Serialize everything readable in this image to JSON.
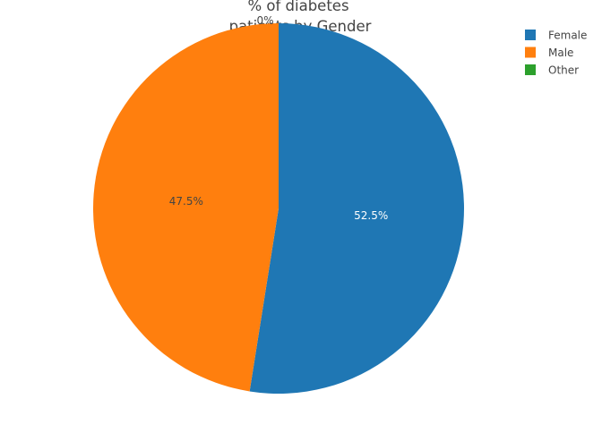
{
  "chart_data": {
    "type": "pie",
    "title_lines": [
      "% of diabetes",
      "patients by Gender"
    ],
    "categories": [
      "Female",
      "Male",
      "Other"
    ],
    "values": [
      52.5,
      47.5,
      0
    ],
    "slice_labels": [
      "52.5%",
      "47.5%",
      "0%"
    ],
    "colors": [
      "#1f77b4",
      "#ff7f0e",
      "#2ca02c"
    ],
    "label_colors": [
      "#ffffff",
      "#444444",
      "#444444"
    ],
    "direction": "clockwise",
    "start_angle_deg": 90,
    "legend": {
      "position": "top-right",
      "items": [
        "Female",
        "Male",
        "Other"
      ]
    }
  }
}
